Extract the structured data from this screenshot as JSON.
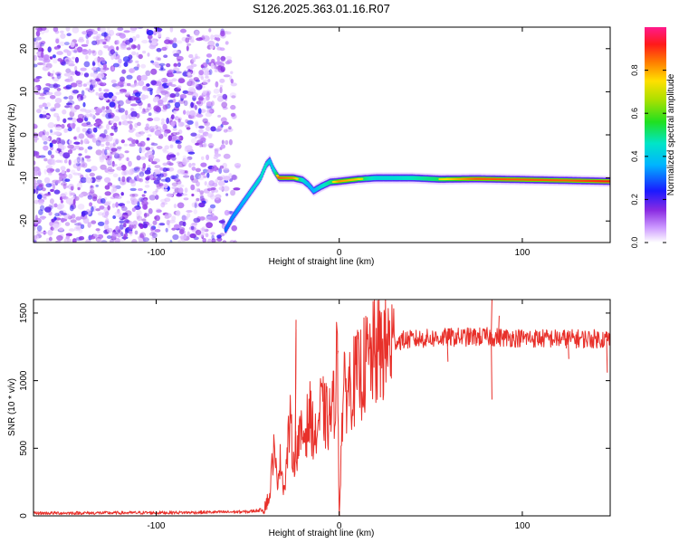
{
  "title": "S126.2025.363.01.16.R07",
  "colors": {
    "snr_line": "#e8302a",
    "axis": "#000000"
  },
  "chart_data": [
    {
      "type": "heatmap",
      "name": "spectrogram",
      "xlabel": "Height of straight line (km)",
      "ylabel": "Frequency (Hz)",
      "xlim": [
        -167,
        148
      ],
      "ylim": [
        -25,
        25
      ],
      "xticks": [
        -100,
        0,
        100
      ],
      "xtick_labels": [
        "-100",
        "0",
        "100"
      ],
      "yticks": [
        -20,
        -10,
        0,
        10,
        20
      ],
      "ytick_labels": [
        "-20",
        "-10",
        "0",
        "10",
        "20"
      ],
      "noise_region_x": [
        -167,
        -55
      ],
      "tone_track": {
        "x": [
          -62,
          -58,
          -53,
          -48,
          -43,
          -40,
          -38,
          -36,
          -33,
          -25,
          -20,
          -17,
          -14,
          -10,
          -5,
          0,
          10,
          20,
          30,
          40,
          55,
          75,
          100,
          125,
          148
        ],
        "y": [
          -22,
          -19,
          -16,
          -13,
          -10,
          -7,
          -6,
          -8,
          -10,
          -10,
          -10.5,
          -11.5,
          -13,
          -12,
          -11,
          -10.8,
          -10.3,
          -10,
          -10,
          -10,
          -10.3,
          -10.2,
          -10.4,
          -10.6,
          -10.8
        ],
        "amplitude": [
          0.3,
          0.35,
          0.4,
          0.5,
          0.55,
          0.6,
          0.45,
          0.5,
          0.85,
          0.8,
          0.6,
          0.45,
          0.4,
          0.55,
          0.65,
          0.8,
          0.75,
          0.55,
          0.55,
          0.6,
          0.7,
          0.85,
          0.85,
          0.85,
          0.9
        ]
      },
      "colorbar": {
        "label": "Normalized spectral amplitude",
        "range": [
          0,
          1
        ],
        "ticks": [
          0.0,
          0.2,
          0.4,
          0.6,
          0.8
        ],
        "tick_labels": [
          "0.0",
          "0.2",
          "0.4",
          "0.6",
          "0.8"
        ]
      }
    },
    {
      "type": "line",
      "name": "snr",
      "xlabel": "Height of straight line (km)",
      "ylabel": "SNR (10 * v/v)",
      "xlim": [
        -167,
        148
      ],
      "ylim": [
        0,
        1600
      ],
      "xticks": [
        -100,
        0,
        100
      ],
      "xtick_labels": [
        "-100",
        "0",
        "100"
      ],
      "yticks": [
        0,
        500,
        1000,
        1500
      ],
      "ytick_labels": [
        "0",
        "500",
        "1000",
        "1500"
      ],
      "series": [
        {
          "name": "SNR",
          "x": [
            -167,
            -120,
            -80,
            -50,
            -42,
            -38,
            -36,
            -34,
            -32,
            -30,
            -27,
            -25,
            -22,
            -19,
            -16,
            -13,
            -10,
            -6,
            -3,
            -1,
            0,
            2,
            5,
            10,
            15,
            20,
            25,
            30,
            35,
            45,
            60,
            80,
            100,
            120,
            148
          ],
          "values": [
            20,
            22,
            25,
            30,
            45,
            140,
            500,
            270,
            420,
            180,
            700,
            420,
            560,
            610,
            740,
            560,
            800,
            700,
            820,
            1200,
            5,
            880,
            960,
            1020,
            1130,
            1200,
            1250,
            1290,
            1300,
            1310,
            1320,
            1325,
            1315,
            1310,
            1310
          ]
        }
      ],
      "spikes": [
        {
          "x": -24,
          "values": [
            1450,
            1380
          ]
        },
        {
          "x": -1,
          "values": [
            1220
          ]
        },
        {
          "x": 0,
          "values": [
            5
          ]
        },
        {
          "x": 59,
          "values": [
            1140
          ]
        },
        {
          "x": 83,
          "values": [
            860,
            1600
          ]
        },
        {
          "x": 87,
          "values": [
            1480
          ]
        },
        {
          "x": 125,
          "values": [
            1160
          ]
        },
        {
          "x": 146,
          "values": [
            1060
          ]
        }
      ]
    }
  ]
}
